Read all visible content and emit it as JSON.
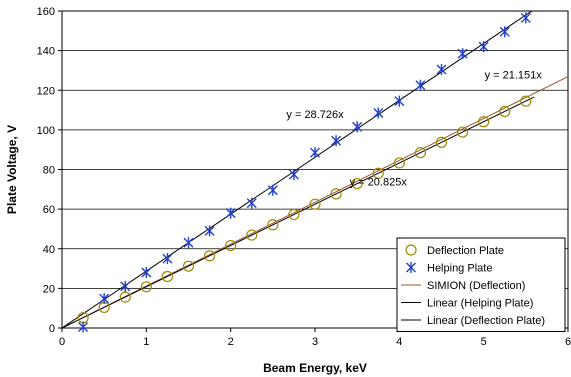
{
  "chart_data": {
    "type": "scatter",
    "xlabel": "Beam Energy, keV",
    "ylabel": "Plate Voltage, V",
    "xlim": [
      0,
      6
    ],
    "ylim": [
      0,
      160
    ],
    "xticks": [
      "0",
      "1",
      "2",
      "3",
      "4",
      "5",
      "6"
    ],
    "yticks": [
      "0",
      "20",
      "40",
      "60",
      "80",
      "100",
      "120",
      "140",
      "160"
    ],
    "grid": "horizontal",
    "legend_position": "bottom-right",
    "series": [
      {
        "name": "Deflection Plate",
        "kind": "marker-circle",
        "color": "#9c8a00",
        "x": [
          0.25,
          0.5,
          0.75,
          1.0,
          1.25,
          1.5,
          1.75,
          2.0,
          2.25,
          2.5,
          2.75,
          3.0,
          3.25,
          3.5,
          3.75,
          4.0,
          4.25,
          4.5,
          4.75,
          5.0,
          5.25,
          5.5
        ],
        "y": [
          5.2,
          10.4,
          15.6,
          20.8,
          26.0,
          31.2,
          36.4,
          41.6,
          46.9,
          52.1,
          57.3,
          62.5,
          67.7,
          72.9,
          78.1,
          83.3,
          88.5,
          93.7,
          98.9,
          104.1,
          109.3,
          114.5
        ]
      },
      {
        "name": "Helping Plate",
        "kind": "marker-star",
        "color": "#1f3fcc",
        "x": [
          0.25,
          0.5,
          0.75,
          1.0,
          1.25,
          1.5,
          1.75,
          2.0,
          2.25,
          2.5,
          2.75,
          3.0,
          3.25,
          3.5,
          3.75,
          4.0,
          4.25,
          4.5,
          4.75,
          5.0,
          5.25,
          5.5
        ],
        "y": [
          0.5,
          14.8,
          21.0,
          28.0,
          35.0,
          43.0,
          49.0,
          58.0,
          63.0,
          69.5,
          77.5,
          88.5,
          94.5,
          101.5,
          108.5,
          114.5,
          122.5,
          130.5,
          138.5,
          142.0,
          149.5,
          156.5
        ]
      },
      {
        "name": "SIMION (Deflection)",
        "kind": "line",
        "color": "#a0522d",
        "slope": 21.151,
        "x_range": [
          0,
          6
        ]
      },
      {
        "name": "Linear (Helping Plate)",
        "kind": "line",
        "color": "#000000",
        "slope": 28.726,
        "x_range": [
          0,
          5.6
        ]
      },
      {
        "name": "Linear (Deflection Plate)",
        "kind": "line",
        "color": "#000000",
        "slope": 20.825,
        "x_range": [
          0,
          5.6
        ]
      }
    ],
    "annotations": [
      {
        "text": "y = 28.726x",
        "x": 3.0,
        "y": 106
      },
      {
        "text": "y = 21.151x",
        "x": 5.35,
        "y": 126
      },
      {
        "text": "y = 20.825x",
        "x": 3.75,
        "y": 72
      }
    ]
  }
}
